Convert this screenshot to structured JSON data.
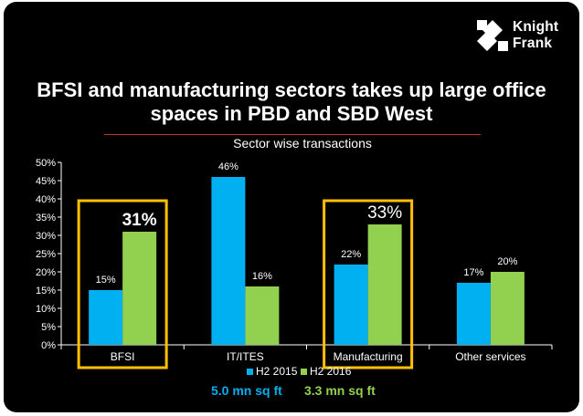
{
  "brand": {
    "line1": "Knight",
    "line2": "Frank",
    "logo_icon": "knight-frank-mark-icon"
  },
  "slide": {
    "title": "BFSI and manufacturing sectors takes up large office spaces in PBD and SBD West"
  },
  "colors": {
    "background": "#000000",
    "series_h2_2015": "#00b0f0",
    "series_h2_2016": "#92d050",
    "highlight_box": "#ffc000",
    "title_rule": "#c0392b",
    "area_2015_text": "#00b0f0",
    "area_2016_text": "#92d050"
  },
  "chart_data": {
    "type": "bar",
    "title": "Sector wise transactions",
    "categories": [
      "BFSI",
      "IT/ITES",
      "Manufacturing",
      "Other services"
    ],
    "series": [
      {
        "name": "H2 2015",
        "values": [
          15,
          46,
          22,
          17
        ],
        "labels": [
          "15%",
          "46%",
          "22%",
          "17%"
        ]
      },
      {
        "name": "H2 2016",
        "values": [
          31,
          16,
          33,
          20
        ],
        "labels": [
          "31%",
          "16%",
          "33%",
          "20%"
        ]
      }
    ],
    "ylim": [
      0,
      50
    ],
    "yticks": [
      "0%",
      "5%",
      "10%",
      "15%",
      "20%",
      "25%",
      "30%",
      "35%",
      "40%",
      "45%",
      "50%"
    ],
    "highlighted_categories": [
      "BFSI",
      "Manufacturing"
    ],
    "legend_position": "bottom",
    "area_totals": [
      {
        "series": "H2 2015",
        "text": "5.0 mn sq ft"
      },
      {
        "series": "H2 2016",
        "text": "3.3 mn sq ft"
      }
    ]
  }
}
